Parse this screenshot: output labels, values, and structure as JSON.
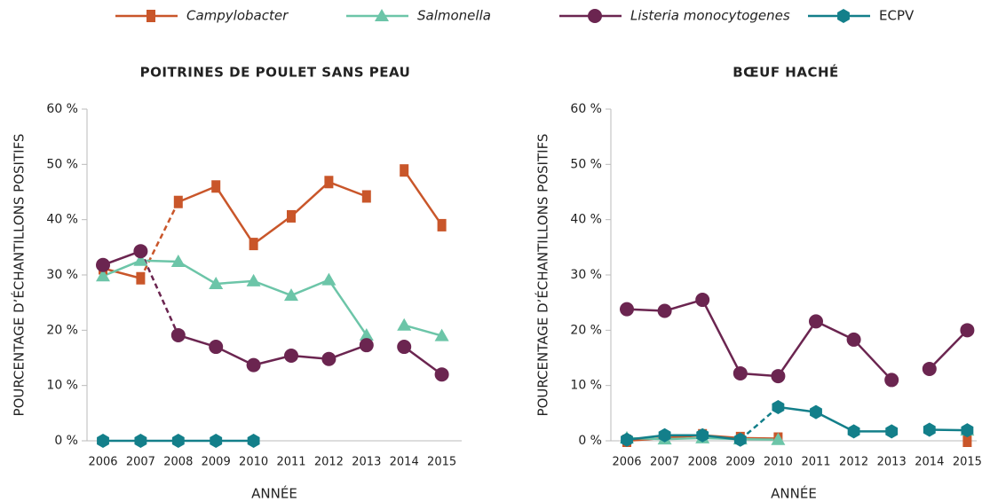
{
  "chart_data": [
    {
      "type": "line",
      "title": "POITRINES DE POULET SANS PEAU",
      "y_label": "POURCENTAGE D’ÉCHANTILLONS POSITIFS",
      "x_label": "ANNÉE",
      "categories": [
        "2006",
        "2007",
        "2008",
        "2009",
        "2010",
        "2011",
        "2012",
        "2013",
        "2014",
        "2015"
      ],
      "ylim": [
        0,
        60
      ],
      "yticks": [
        {
          "value": 0,
          "label": "0 %"
        },
        {
          "value": 10,
          "label": "10 %"
        },
        {
          "value": 20,
          "label": "20 %"
        },
        {
          "value": 30,
          "label": "30 %"
        },
        {
          "value": 40,
          "label": "40 %"
        },
        {
          "value": 50,
          "label": "50 %"
        },
        {
          "value": 60,
          "label": "60 %"
        }
      ],
      "series": [
        {
          "name": "Campylobacter",
          "italic": true,
          "color": "#c9562a",
          "marker": "square",
          "values": [
            31.2,
            29.4,
            43.2,
            46,
            35.6,
            40.6,
            46.8,
            44.2,
            48.9,
            39
          ],
          "links": [
            "solid",
            "dashed",
            "solid",
            "solid",
            "solid",
            "solid",
            "solid",
            "none",
            "solid"
          ]
        },
        {
          "name": "Salmonella",
          "italic": true,
          "color": "#6cc5a8",
          "marker": "triangle",
          "values": [
            29.8,
            32.6,
            32.4,
            28.4,
            28.9,
            26.3,
            29.1,
            19.1,
            20.9,
            19
          ],
          "links": [
            "solid",
            "solid",
            "solid",
            "solid",
            "solid",
            "solid",
            "solid",
            "none",
            "solid"
          ]
        },
        {
          "name": "Listeria monocytogenes",
          "italic": true,
          "color": "#6b2550",
          "marker": "circle",
          "values": [
            31.8,
            34.3,
            19.1,
            17,
            13.7,
            15.4,
            14.8,
            17.3,
            17,
            12
          ],
          "links": [
            "solid",
            "dashed",
            "solid",
            "solid",
            "solid",
            "solid",
            "solid",
            "none",
            "solid"
          ]
        },
        {
          "name": "ECPV",
          "italic": false,
          "color": "#137f8a",
          "marker": "hexagon",
          "values": [
            0,
            0,
            0,
            0,
            0,
            null,
            null,
            null,
            null,
            null
          ],
          "links": [
            "solid",
            "solid",
            "solid",
            "solid",
            "none",
            "none",
            "none",
            "none",
            "none"
          ]
        }
      ]
    },
    {
      "type": "line",
      "title": "BŒUF HACHÉ",
      "y_label": "POURCENTAGE D’ÉCHANTILLONS POSITIFS",
      "x_label": "ANNÉE",
      "categories": [
        "2006",
        "2007",
        "2008",
        "2009",
        "2010",
        "2011",
        "2012",
        "2013",
        "2014",
        "2015"
      ],
      "ylim": [
        0,
        60
      ],
      "yticks": [
        {
          "value": 0,
          "label": "0 %"
        },
        {
          "value": 10,
          "label": "10 %"
        },
        {
          "value": 20,
          "label": "20 %"
        },
        {
          "value": 30,
          "label": "30 %"
        },
        {
          "value": 40,
          "label": "40 %"
        },
        {
          "value": 50,
          "label": "50 %"
        },
        {
          "value": 60,
          "label": "60 %"
        }
      ],
      "series": [
        {
          "name": "Campylobacter",
          "italic": true,
          "color": "#c9562a",
          "marker": "square",
          "values": [
            0,
            0.5,
            1,
            0.5,
            0.4,
            null,
            null,
            null,
            null,
            0
          ],
          "links": [
            "solid",
            "solid",
            "solid",
            "solid",
            "none",
            "none",
            "none",
            "none",
            "none"
          ]
        },
        {
          "name": "Salmonella",
          "italic": true,
          "color": "#6cc5a8",
          "marker": "triangle",
          "values": [
            0.5,
            0.3,
            0.5,
            0.3,
            0.2,
            null,
            null,
            null,
            null,
            1.9
          ],
          "links": [
            "solid",
            "solid",
            "solid",
            "solid",
            "none",
            "none",
            "none",
            "none",
            "none"
          ]
        },
        {
          "name": "Listeria monocytogenes",
          "italic": true,
          "color": "#6b2550",
          "marker": "circle",
          "values": [
            23.8,
            23.5,
            25.5,
            12.2,
            11.7,
            21.6,
            18.3,
            11,
            13,
            20
          ],
          "links": [
            "solid",
            "solid",
            "solid",
            "solid",
            "solid",
            "solid",
            "solid",
            "none",
            "solid"
          ]
        },
        {
          "name": "ECPV",
          "italic": false,
          "color": "#137f8a",
          "marker": "hexagon",
          "values": [
            0.2,
            1,
            1,
            0.2,
            6.1,
            5.2,
            1.7,
            1.7,
            2,
            1.9
          ],
          "links": [
            "solid",
            "solid",
            "solid",
            "dashed",
            "solid",
            "solid",
            "solid",
            "none",
            "solid"
          ]
        }
      ]
    }
  ]
}
